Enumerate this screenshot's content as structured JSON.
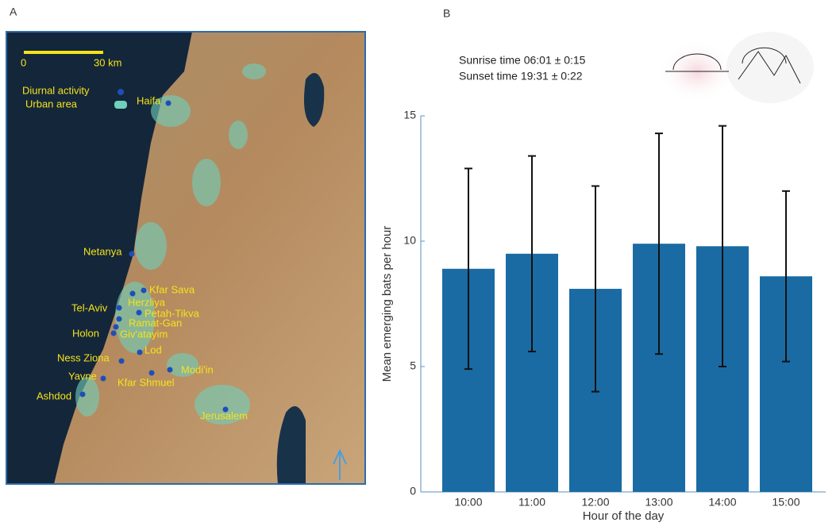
{
  "map": {
    "panel_label": "A",
    "scale": {
      "start": "0",
      "end": "30 km"
    },
    "legend": [
      {
        "label": "Diurnal activity"
      },
      {
        "label": "Urban area"
      }
    ],
    "cities": [
      {
        "label": "Haifa"
      },
      {
        "label": "Netanya"
      },
      {
        "label": "Kfar Sava"
      },
      {
        "label": "Herzliya"
      },
      {
        "label": "Tel-Aviv"
      },
      {
        "label": "Petah-Tikva"
      },
      {
        "label": "Ramat-Gan"
      },
      {
        "label": "Holon"
      },
      {
        "label": "Giv'atayim"
      },
      {
        "label": "Lod"
      },
      {
        "label": "Ness Ziona"
      },
      {
        "label": "Modi'in"
      },
      {
        "label": "Kfar Shmuel"
      },
      {
        "label": "Yavne"
      },
      {
        "label": "Ashdod"
      },
      {
        "label": "Jerusalem"
      }
    ]
  },
  "chart_data": {
    "type": "bar",
    "panel_label": "B",
    "annotations": [
      "Sunrise time 06:01 ± 0:15",
      "Sunset time 19:31 ± 0:22"
    ],
    "x_label": "Hour of the day",
    "y_label": "Mean emerging bats per hour",
    "categories": [
      "10:00",
      "11:00",
      "12:00",
      "13:00",
      "14:00",
      "15:00"
    ],
    "values": [
      8.9,
      9.5,
      8.1,
      9.9,
      9.8,
      8.6
    ],
    "errors": [
      4.0,
      3.9,
      4.1,
      4.4,
      4.8,
      3.4
    ],
    "color": "#1a6ba3",
    "ylim": [
      0,
      15
    ],
    "yticks": [
      0,
      5,
      10,
      15
    ]
  }
}
